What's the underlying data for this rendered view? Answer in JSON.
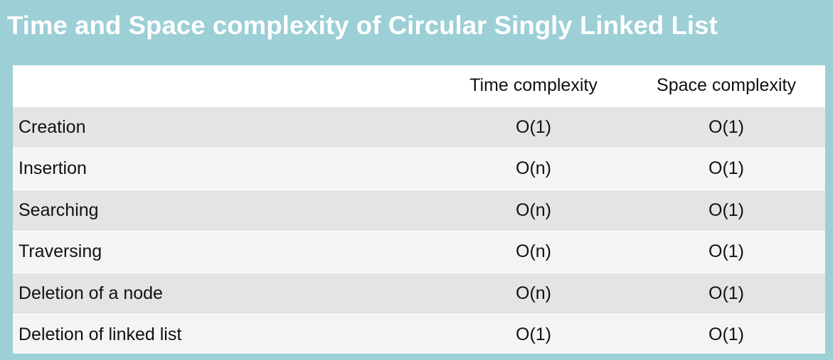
{
  "title": "Time and Space complexity of Circular Singly Linked List",
  "table": {
    "headers": [
      "",
      "Time complexity",
      "Space complexity"
    ],
    "rows": [
      [
        "Creation",
        "O(1)",
        "O(1)"
      ],
      [
        "Insertion",
        "O(n)",
        "O(1)"
      ],
      [
        "Searching",
        "O(n)",
        "O(1)"
      ],
      [
        "Traversing",
        "O(n)",
        "O(1)"
      ],
      [
        "Deletion of a node",
        "O(n)",
        "O(1)"
      ],
      [
        "Deletion of linked list",
        "O(1)",
        "O(1)"
      ]
    ]
  },
  "colors": {
    "background": "#9ccfd6",
    "title_text": "#ffffff",
    "row_band_dark": "#e4e4e6",
    "row_band_light": "#f4f4f5"
  }
}
